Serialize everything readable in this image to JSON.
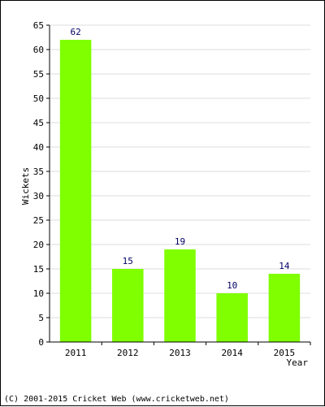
{
  "chart_data": {
    "type": "bar",
    "categories": [
      "2011",
      "2012",
      "2013",
      "2014",
      "2015"
    ],
    "values": [
      62,
      15,
      19,
      10,
      14
    ],
    "xlabel": "Year",
    "ylabel": "Wickets",
    "ylim": [
      0,
      65
    ],
    "ytick_step": 5,
    "grid": true,
    "bar_color": "#7fff00",
    "grid_color": "#dcdcdc"
  },
  "footer": "(C) 2001-2015 Cricket Web (www.cricketweb.net)"
}
